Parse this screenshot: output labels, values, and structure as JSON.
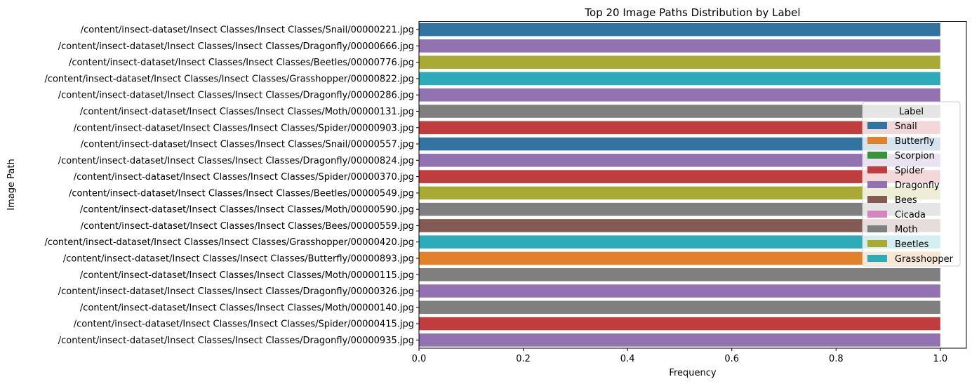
{
  "chart_data": {
    "type": "bar",
    "orientation": "horizontal",
    "title": "Top 20 Image Paths Distribution by Label",
    "xlabel": "Frequency",
    "ylabel": "Image Path",
    "xlim": [
      0,
      1.05
    ],
    "xticks": [
      "0.0",
      "0.2",
      "0.4",
      "0.6",
      "0.8",
      "1.0"
    ],
    "xtick_values": [
      0,
      0.2,
      0.4,
      0.6,
      0.8,
      1.0
    ],
    "grid": false,
    "legend": {
      "title": "Label",
      "placement": "center-right",
      "entries": [
        {
          "name": "Snail",
          "color": "#3274a1"
        },
        {
          "name": "Butterfly",
          "color": "#e1812c"
        },
        {
          "name": "Scorpion",
          "color": "#3a923a"
        },
        {
          "name": "Spider",
          "color": "#c03d3e"
        },
        {
          "name": "Dragonfly",
          "color": "#9372b2"
        },
        {
          "name": "Bees",
          "color": "#845b53"
        },
        {
          "name": "Cicada",
          "color": "#d684bd"
        },
        {
          "name": "Moth",
          "color": "#7f7f7f"
        },
        {
          "name": "Beetles",
          "color": "#a9aa35"
        },
        {
          "name": "Grasshopper",
          "color": "#2eabb8"
        }
      ]
    },
    "bars": [
      {
        "category": "/content/insect-dataset/Insect Classes/Insect Classes/Snail/00000221.jpg",
        "label": "Snail",
        "value": 1.0
      },
      {
        "category": "/content/insect-dataset/Insect Classes/Insect Classes/Dragonfly/00000666.jpg",
        "label": "Dragonfly",
        "value": 1.0
      },
      {
        "category": "/content/insect-dataset/Insect Classes/Insect Classes/Beetles/00000776.jpg",
        "label": "Beetles",
        "value": 1.0
      },
      {
        "category": "/content/insect-dataset/Insect Classes/Insect Classes/Grasshopper/00000822.jpg",
        "label": "Grasshopper",
        "value": 1.0
      },
      {
        "category": "/content/insect-dataset/Insect Classes/Insect Classes/Dragonfly/00000286.jpg",
        "label": "Dragonfly",
        "value": 1.0
      },
      {
        "category": "/content/insect-dataset/Insect Classes/Insect Classes/Moth/00000131.jpg",
        "label": "Moth",
        "value": 1.0
      },
      {
        "category": "/content/insect-dataset/Insect Classes/Insect Classes/Spider/00000903.jpg",
        "label": "Spider",
        "value": 1.0
      },
      {
        "category": "/content/insect-dataset/Insect Classes/Insect Classes/Snail/00000557.jpg",
        "label": "Snail",
        "value": 1.0
      },
      {
        "category": "/content/insect-dataset/Insect Classes/Insect Classes/Dragonfly/00000824.jpg",
        "label": "Dragonfly",
        "value": 1.0
      },
      {
        "category": "/content/insect-dataset/Insect Classes/Insect Classes/Spider/00000370.jpg",
        "label": "Spider",
        "value": 1.0
      },
      {
        "category": "/content/insect-dataset/Insect Classes/Insect Classes/Beetles/00000549.jpg",
        "label": "Beetles",
        "value": 1.0
      },
      {
        "category": "/content/insect-dataset/Insect Classes/Insect Classes/Moth/00000590.jpg",
        "label": "Moth",
        "value": 1.0
      },
      {
        "category": "/content/insect-dataset/Insect Classes/Insect Classes/Bees/00000559.jpg",
        "label": "Bees",
        "value": 1.0
      },
      {
        "category": "/content/insect-dataset/Insect Classes/Insect Classes/Grasshopper/00000420.jpg",
        "label": "Grasshopper",
        "value": 1.0
      },
      {
        "category": "/content/insect-dataset/Insect Classes/Insect Classes/Butterfly/00000893.jpg",
        "label": "Butterfly",
        "value": 1.0
      },
      {
        "category": "/content/insect-dataset/Insect Classes/Insect Classes/Moth/00000115.jpg",
        "label": "Moth",
        "value": 1.0
      },
      {
        "category": "/content/insect-dataset/Insect Classes/Insect Classes/Dragonfly/00000326.jpg",
        "label": "Dragonfly",
        "value": 1.0
      },
      {
        "category": "/content/insect-dataset/Insect Classes/Insect Classes/Moth/00000140.jpg",
        "label": "Moth",
        "value": 1.0
      },
      {
        "category": "/content/insect-dataset/Insect Classes/Insect Classes/Spider/00000415.jpg",
        "label": "Spider",
        "value": 1.0
      },
      {
        "category": "/content/insect-dataset/Insect Classes/Insect Classes/Dragonfly/00000935.jpg",
        "label": "Dragonfly",
        "value": 1.0
      }
    ]
  }
}
